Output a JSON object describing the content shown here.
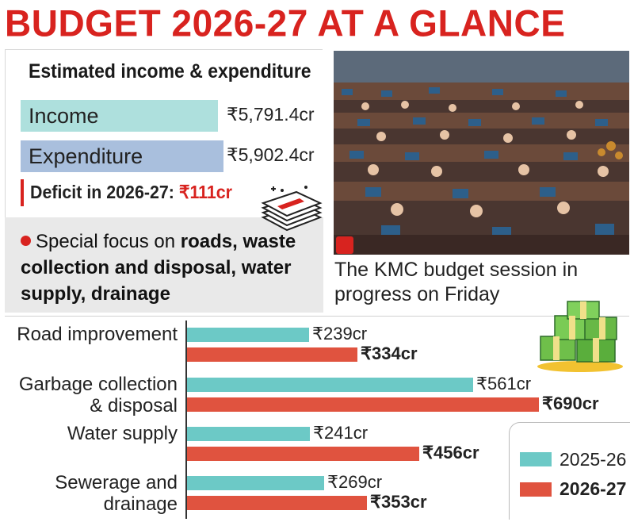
{
  "title": "BUDGET 2026-27 AT A GLANCE",
  "summary": {
    "heading": "Estimated income & expenditure",
    "income_label": "Income",
    "income_value": "₹5,791.4cr",
    "expenditure_label": "Expenditure",
    "expenditure_value": "₹5,902.4cr",
    "deficit_label": "Deficit in 2026-27: ",
    "deficit_value": "₹111cr",
    "focus_prefix": "Special focus on ",
    "focus_bold": "roads, waste collection and disposal, water supply, drainage"
  },
  "photo": {
    "caption": "The KMC budget session in progress on Friday"
  },
  "colors": {
    "title_red": "#d8231f",
    "series_2025": "#6cc9c6",
    "series_2026": "#e0533f",
    "income_fill": "#aee0dd",
    "expenditure_fill": "#a9bfdd"
  },
  "chart_data": {
    "type": "bar",
    "orientation": "horizontal",
    "categories": [
      "Road improvement",
      "Garbage collection & disposal",
      "Water supply",
      "Sewerage and drainage"
    ],
    "series": [
      {
        "name": "2025-26",
        "values": [
          239,
          561,
          241,
          269
        ],
        "labels": [
          "₹239cr",
          "₹561cr",
          "₹241cr",
          "₹269cr"
        ]
      },
      {
        "name": "2026-27",
        "values": [
          334,
          690,
          456,
          353
        ],
        "labels": [
          "₹334cr",
          "₹690cr",
          "₹456cr",
          "₹353cr"
        ]
      }
    ],
    "legend_position": "bottom-right",
    "icons": [
      "cash-stack-icon",
      "money-bundles-icon"
    ]
  }
}
